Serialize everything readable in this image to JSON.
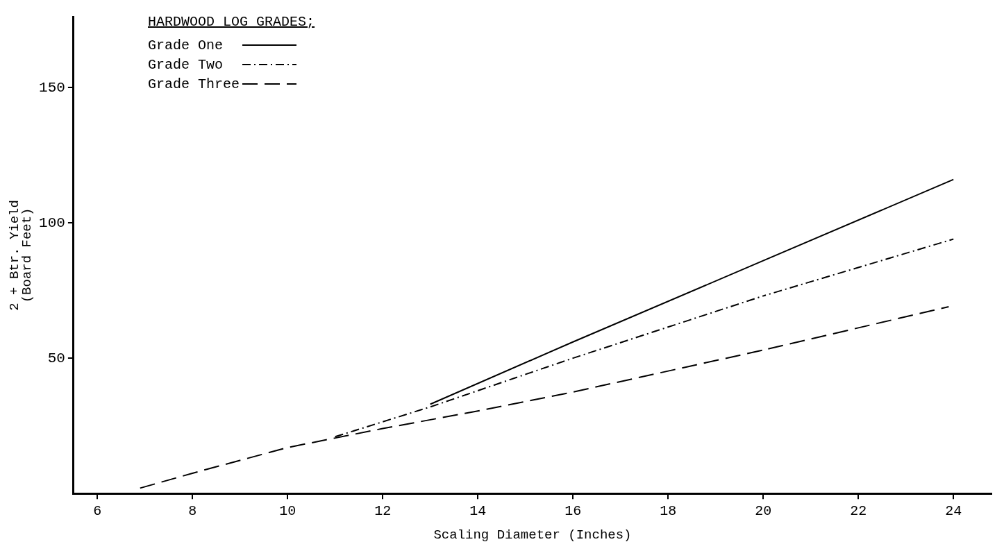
{
  "chart_data": {
    "type": "line",
    "xlabel": "Scaling Diameter (Inches)",
    "ylabel": "2 + Btr. Yield\n(Board Feet)",
    "legend_title": "HARDWOOD LOG GRADES;",
    "xlim": [
      5.5,
      24.8
    ],
    "ylim": [
      0,
      176
    ],
    "xticks": [
      6,
      8,
      10,
      12,
      14,
      16,
      18,
      20,
      22,
      24
    ],
    "yticks": [
      50,
      100,
      150
    ],
    "legend": "top left",
    "marker": "none",
    "series": [
      {
        "name": "Grade One",
        "color": "#000000",
        "line_style": "solid",
        "x": [
          13,
          16,
          20,
          24
        ],
        "values": [
          33,
          56,
          86,
          116
        ]
      },
      {
        "name": "Grade Two",
        "color": "#000000",
        "line_style": "dashdot",
        "x": [
          11,
          13,
          16,
          20,
          24
        ],
        "values": [
          21,
          32,
          50,
          73,
          94
        ]
      },
      {
        "name": "Grade Three",
        "color": "#000000",
        "line_style": "dashed",
        "x": [
          6.9,
          8,
          10,
          12,
          14,
          16,
          20,
          23.9
        ],
        "values": [
          2,
          7.5,
          17,
          24,
          30.5,
          37.5,
          53,
          69
        ]
      }
    ]
  }
}
